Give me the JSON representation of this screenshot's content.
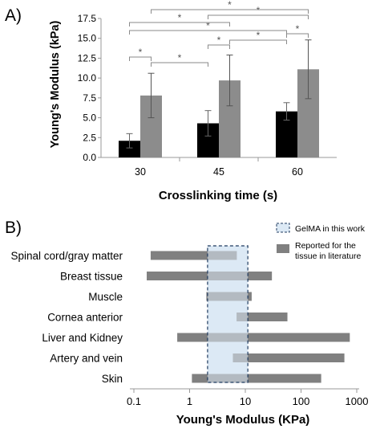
{
  "panel_a": {
    "label": "A)",
    "chart_data": {
      "type": "bar",
      "categories": [
        "30",
        "45",
        "60"
      ],
      "series": [
        {
          "name": "",
          "color": "#000000",
          "values": [
            2.1,
            4.3,
            5.8
          ],
          "errors": [
            0.9,
            1.6,
            1.1
          ]
        },
        {
          "name": "",
          "color": "#8c8c8c",
          "values": [
            7.8,
            9.7,
            11.1
          ],
          "errors": [
            2.8,
            3.2,
            3.7
          ]
        }
      ],
      "xlabel": "Crosslinking time (s)",
      "ylabel": "Young's Modulus (kPa)",
      "ylim": [
        0,
        17.5
      ],
      "yticks": [
        "0.0",
        "2.5",
        "5.0",
        "7.5",
        "10.0",
        "12.5",
        "15.0",
        "17.5"
      ],
      "grid": false,
      "significance": [
        {
          "from": "30-grey",
          "to": "45-black",
          "mark": "*"
        },
        {
          "from": "30-black",
          "to": "30-grey",
          "mark": "*"
        },
        {
          "from": "45-black",
          "to": "45-grey",
          "mark": "*"
        },
        {
          "from": "45-grey",
          "to": "60-black",
          "mark": "*"
        },
        {
          "from": "60-black",
          "to": "60-grey",
          "mark": "*"
        },
        {
          "from": "30-black",
          "to": "60-black",
          "mark": "*"
        },
        {
          "from": "30-black",
          "to": "45-grey",
          "mark": "*"
        },
        {
          "from": "45-black",
          "to": "60-grey",
          "mark": "*"
        },
        {
          "from": "30-grey",
          "to": "60-grey",
          "mark": "*"
        }
      ]
    }
  },
  "panel_b": {
    "label": "B)",
    "chart_data": {
      "type": "bar",
      "orientation": "horizontal-range",
      "xscale": "log",
      "xlim": [
        0.1,
        1000
      ],
      "xticks": [
        "0.1",
        "1",
        "10",
        "100",
        "1000"
      ],
      "xlabel": "Young's Modulus (KPa)",
      "categories": [
        "Spinal cord/gray matter",
        "Breast tissue",
        "Muscle",
        "Cornea anterior",
        "Liver and Kidney",
        "Artery and vein",
        "Skin"
      ],
      "ranges": [
        [
          0.2,
          7
        ],
        [
          0.17,
          30
        ],
        [
          2,
          13
        ],
        [
          7,
          57
        ],
        [
          0.6,
          750
        ],
        [
          6,
          600
        ],
        [
          1.1,
          230
        ]
      ],
      "gelma_range": [
        2.1,
        11.1
      ],
      "legend": [
        {
          "label": "GelMA in this work",
          "color": "#dce9f5",
          "style": "dashed-box"
        },
        {
          "label": "Reported for the tissue in literature",
          "color": "#808080",
          "style": "solid"
        }
      ],
      "legend_position": "top-right"
    }
  }
}
